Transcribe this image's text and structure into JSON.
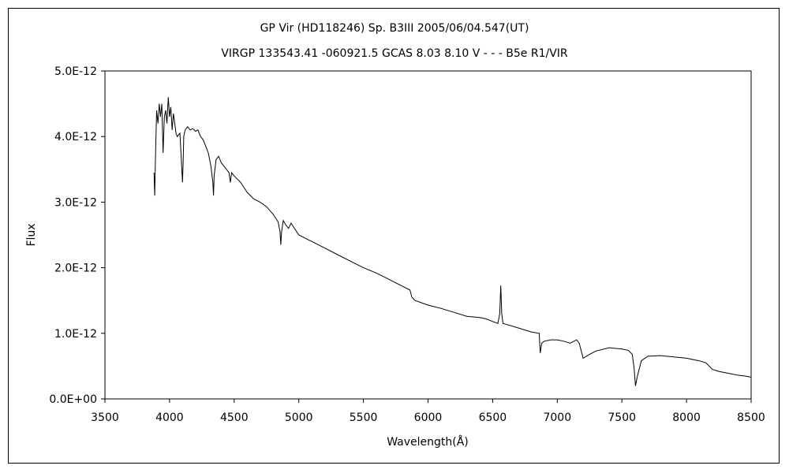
{
  "chart_data": {
    "type": "line",
    "title": "GP Vir (HD118246)    Sp. B3III    2005/06/04.547(UT)",
    "subtitle": "VIRGP 133543.41 -060921.5 GCAS 8.03 8.10 V - - - B5e R1/VIR",
    "xlabel": "Wavelength(Å)",
    "ylabel": "Flux",
    "xlim": [
      3500,
      8500
    ],
    "ylim": [
      0,
      5e-12
    ],
    "xticks": [
      3500,
      4000,
      4500,
      5000,
      5500,
      6000,
      6500,
      7000,
      7500,
      8000,
      8500
    ],
    "xtick_labels": [
      "3500",
      "4000",
      "4500",
      "5000",
      "5500",
      "6000",
      "6500",
      "7000",
      "7500",
      "8000",
      "8500"
    ],
    "yticks": [
      0,
      1e-12,
      2e-12,
      3e-12,
      4e-12,
      5e-12
    ],
    "ytick_labels": [
      "0.0E+00",
      "1.0E-12",
      "2.0E-12",
      "3.0E-12",
      "4.0E-12",
      "5.0E-12"
    ],
    "grid": false,
    "legend": "none",
    "line_color": "#000000",
    "series": [
      {
        "x": [
          3880,
          3885,
          3890,
          3900,
          3910,
          3920,
          3930,
          3940,
          3950,
          3960,
          3970,
          3980,
          3990,
          4000,
          4010,
          4020,
          4030,
          4040,
          4050,
          4060,
          4080,
          4090,
          4100,
          4105,
          4110,
          4120,
          4140,
          4160,
          4180,
          4200,
          4220,
          4240,
          4260,
          4280,
          4300,
          4320,
          4335,
          4340,
          4345,
          4360,
          4380,
          4400,
          4420,
          4440,
          4460,
          4471,
          4480,
          4500,
          4550,
          4600,
          4650,
          4700,
          4750,
          4800,
          4840,
          4855,
          4861,
          4867,
          4880,
          4900,
          4921,
          4940,
          4960,
          5000,
          5100,
          5200,
          5300,
          5400,
          5500,
          5600,
          5700,
          5800,
          5860,
          5875,
          5890,
          5900,
          6000,
          6100,
          6200,
          6300,
          6350,
          6400,
          6450,
          6500,
          6540,
          6555,
          6563,
          6570,
          6580,
          6600,
          6700,
          6800,
          6860,
          6868,
          6880,
          6900,
          6950,
          7000,
          7050,
          7100,
          7150,
          7170,
          7200,
          7250,
          7300,
          7400,
          7500,
          7550,
          7580,
          7594,
          7605,
          7620,
          7650,
          7700,
          7800,
          7900,
          8000,
          8050,
          8100,
          8150,
          8200,
          8250,
          8300,
          8350,
          8400,
          8450,
          8500
        ],
        "y": [
          3.45e-12,
          3.1e-12,
          3.6e-12,
          4.4e-12,
          4.2e-12,
          4.5e-12,
          4.3e-12,
          4.5e-12,
          3.75e-12,
          4.3e-12,
          4.4e-12,
          4.2e-12,
          4.6e-12,
          4.3e-12,
          4.45e-12,
          4.1e-12,
          4.35e-12,
          4.2e-12,
          4.05e-12,
          4e-12,
          4.05e-12,
          3.7e-12,
          3.3e-12,
          3.6e-12,
          4e-12,
          4.1e-12,
          4.15e-12,
          4.1e-12,
          4.12e-12,
          4.08e-12,
          4.1e-12,
          4e-12,
          3.95e-12,
          3.85e-12,
          3.75e-12,
          3.55e-12,
          3.3e-12,
          3.1e-12,
          3.4e-12,
          3.65e-12,
          3.7e-12,
          3.6e-12,
          3.55e-12,
          3.5e-12,
          3.45e-12,
          3.3e-12,
          3.45e-12,
          3.4e-12,
          3.3e-12,
          3.15e-12,
          3.05e-12,
          3e-12,
          2.93e-12,
          2.82e-12,
          2.7e-12,
          2.55e-12,
          2.35e-12,
          2.55e-12,
          2.72e-12,
          2.65e-12,
          2.6e-12,
          2.68e-12,
          2.62e-12,
          2.5e-12,
          2.4e-12,
          2.3e-12,
          2.2e-12,
          2.1e-12,
          2e-12,
          1.92e-12,
          1.82e-12,
          1.72e-12,
          1.66e-12,
          1.55e-12,
          1.52e-12,
          1.5e-12,
          1.43e-12,
          1.38e-12,
          1.32e-12,
          1.26e-12,
          1.25e-12,
          1.24e-12,
          1.22e-12,
          1.18e-12,
          1.15e-12,
          1.3e-12,
          1.73e-12,
          1.3e-12,
          1.15e-12,
          1.14e-12,
          1.08e-12,
          1.02e-12,
          1e-12,
          7e-13,
          8.5e-13,
          8.8e-13,
          9e-13,
          9e-13,
          8.8e-13,
          8.5e-13,
          9e-13,
          8.5e-13,
          6.2e-13,
          6.8e-13,
          7.3e-13,
          7.8e-13,
          7.6e-13,
          7.4e-13,
          6.8e-13,
          4.8e-13,
          2e-13,
          3.5e-13,
          5.8e-13,
          6.5e-13,
          6.6e-13,
          6.4e-13,
          6.2e-13,
          6e-13,
          5.8e-13,
          5.5e-13,
          4.5e-13,
          4.2e-13,
          4e-13,
          3.8e-13,
          3.6e-13,
          3.5e-13,
          3.3e-13
        ]
      }
    ]
  }
}
